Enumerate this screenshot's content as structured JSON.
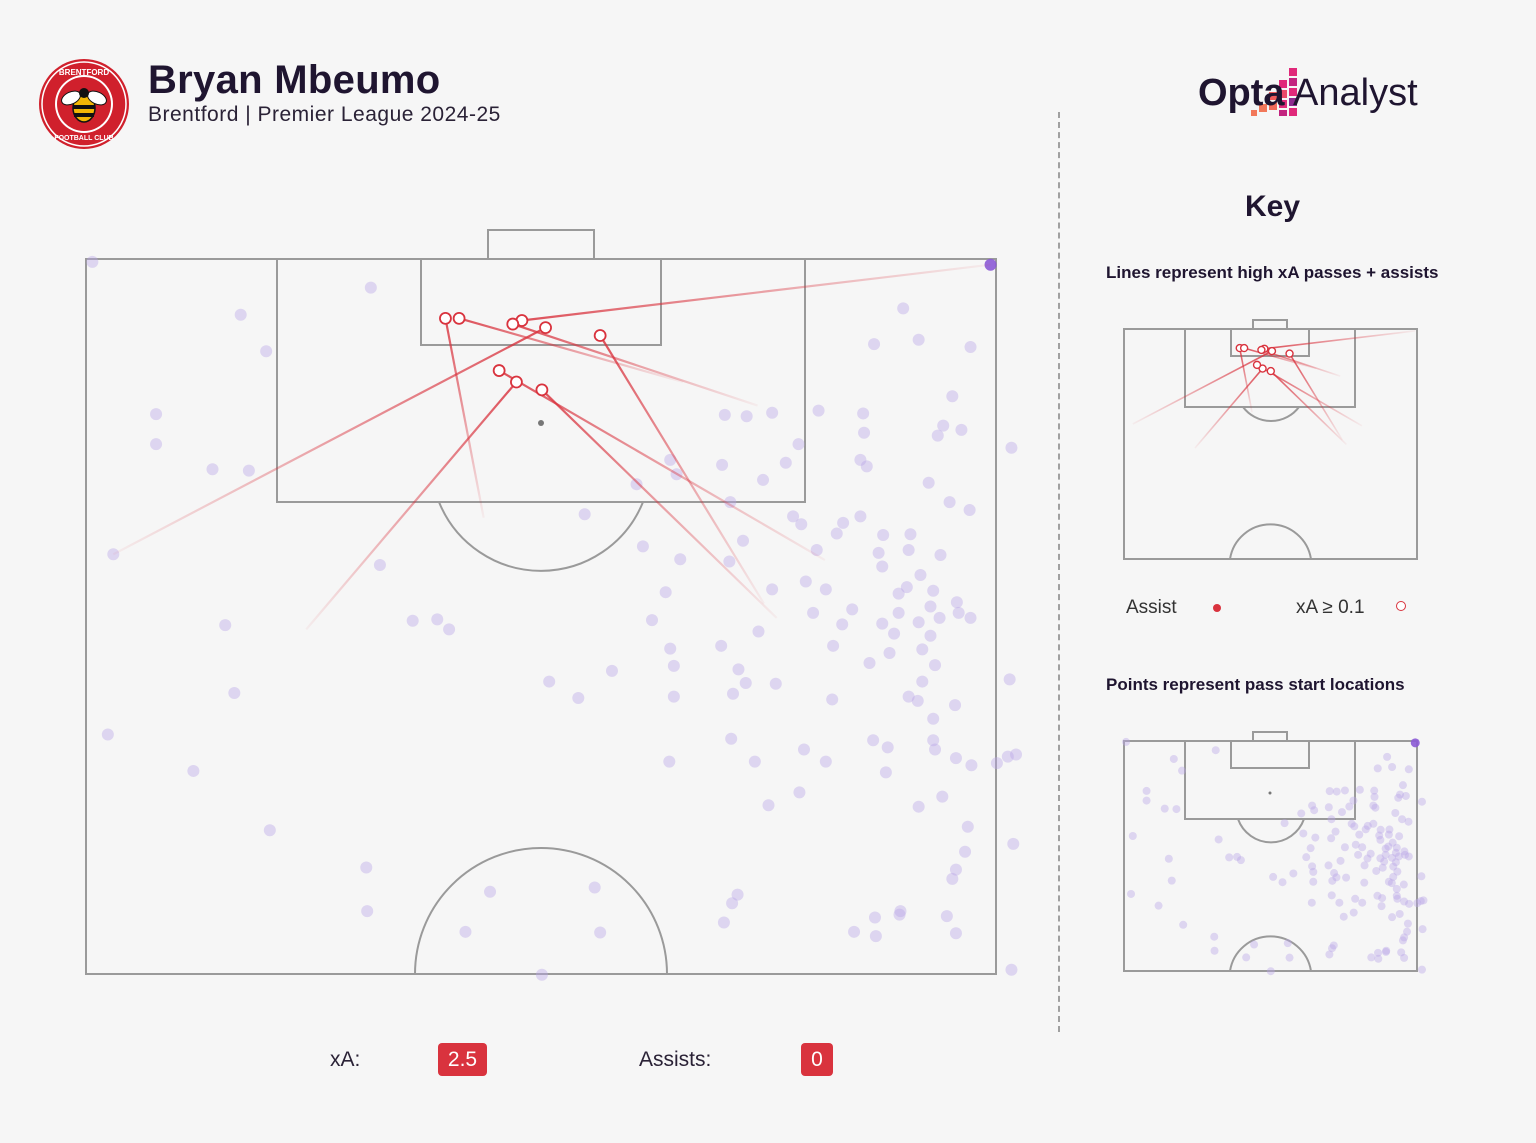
{
  "header": {
    "player_name": "Bryan Mbeumo",
    "subtitle": "Brentford | Premier League 2024-25",
    "club_badge_icon": "brentford-badge-icon",
    "brand": {
      "bold": "Opta",
      "light": " Analyst"
    }
  },
  "key": {
    "title": "Key",
    "lines_caption": "Lines represent high xA passes + assists",
    "points_caption": "Points represent pass start locations",
    "legend_assist": "Assist",
    "legend_xa": "xA ≥ 0.1"
  },
  "stats": {
    "xa_label": "xA:",
    "xa_value": "2.5",
    "assists_label": "Assists:",
    "assists_value": "0"
  },
  "colors": {
    "pass_point": "#b9a6e8",
    "key_pass": "#d9333e",
    "pitch_line": "#9a9a9a",
    "badge_red": "#d0202c"
  },
  "chart_data": {
    "type": "scatter",
    "title": "",
    "coordinate_system": "attacking-half pitch, x = width 0-100 (left to right), y = distance from goal line 0-100 (goal line to halfway)",
    "pass_start_points": [
      [
        0.7,
        0.4
      ],
      [
        99.4,
        0.8
      ],
      [
        31.3,
        4
      ],
      [
        17,
        7.8
      ],
      [
        89.8,
        6.9
      ],
      [
        19.8,
        12.9
      ],
      [
        86.6,
        11.9
      ],
      [
        91.5,
        11.3
      ],
      [
        97.2,
        12.3
      ],
      [
        95.2,
        19.2
      ],
      [
        7.7,
        21.7
      ],
      [
        70.2,
        21.8
      ],
      [
        72.6,
        22
      ],
      [
        75.4,
        21.5
      ],
      [
        80.5,
        21.2
      ],
      [
        85.4,
        21.6
      ],
      [
        94.2,
        23.3
      ],
      [
        96.2,
        23.9
      ],
      [
        7.7,
        25.9
      ],
      [
        78.3,
        25.9
      ],
      [
        85.5,
        24.3
      ],
      [
        93.6,
        24.7
      ],
      [
        101.7,
        26.4
      ],
      [
        64.2,
        28.1
      ],
      [
        69.9,
        28.8
      ],
      [
        76.9,
        28.5
      ],
      [
        85.1,
        28.1
      ],
      [
        13.9,
        29.4
      ],
      [
        17.9,
        29.6
      ],
      [
        85.8,
        29
      ],
      [
        92.6,
        31.3
      ],
      [
        60.5,
        31.5
      ],
      [
        64.9,
        30.1
      ],
      [
        74.4,
        30.9
      ],
      [
        70.8,
        34
      ],
      [
        54.8,
        35.7
      ],
      [
        77.7,
        36
      ],
      [
        85.1,
        36
      ],
      [
        94.9,
        34
      ],
      [
        97.1,
        35.1
      ],
      [
        78.6,
        37.1
      ],
      [
        83.2,
        36.9
      ],
      [
        82.5,
        38.4
      ],
      [
        72.2,
        39.4
      ],
      [
        87.6,
        38.6
      ],
      [
        90.6,
        38.5
      ],
      [
        80.3,
        40.7
      ],
      [
        3,
        41.3
      ],
      [
        61.2,
        40.2
      ],
      [
        70.7,
        42.3
      ],
      [
        65.3,
        42
      ],
      [
        32.3,
        42.8
      ],
      [
        87.1,
        41.1
      ],
      [
        90.4,
        40.7
      ],
      [
        87.5,
        43
      ],
      [
        93.9,
        41.4
      ],
      [
        91.7,
        44.2
      ],
      [
        79.1,
        45.1
      ],
      [
        81.3,
        46.2
      ],
      [
        90.2,
        45.9
      ],
      [
        63.7,
        46.6
      ],
      [
        75.4,
        46.2
      ],
      [
        89.3,
        46.8
      ],
      [
        93.1,
        46.4
      ],
      [
        95.7,
        48
      ],
      [
        92.8,
        48.6
      ],
      [
        84.2,
        49
      ],
      [
        95.9,
        49.5
      ],
      [
        38.6,
        50.4
      ],
      [
        35.9,
        50.6
      ],
      [
        79.9,
        49.5
      ],
      [
        89.3,
        49.5
      ],
      [
        15.3,
        51.2
      ],
      [
        39.9,
        51.8
      ],
      [
        62.2,
        50.5
      ],
      [
        73.9,
        52.1
      ],
      [
        83.1,
        51.1
      ],
      [
        87.5,
        51
      ],
      [
        91.5,
        50.8
      ],
      [
        93.8,
        50.2
      ],
      [
        97.2,
        50.2
      ],
      [
        88.8,
        52.4
      ],
      [
        92.8,
        52.7
      ],
      [
        64.2,
        54.5
      ],
      [
        69.8,
        54.1
      ],
      [
        82.1,
        54.1
      ],
      [
        88.3,
        55.1
      ],
      [
        91.9,
        54.6
      ],
      [
        86.1,
        56.5
      ],
      [
        101.5,
        58.8
      ],
      [
        50.9,
        59.1
      ],
      [
        57.8,
        57.6
      ],
      [
        64.6,
        56.9
      ],
      [
        71.7,
        57.4
      ],
      [
        93.3,
        56.8
      ],
      [
        91.9,
        59.1
      ],
      [
        54.1,
        61.4
      ],
      [
        64.6,
        61.2
      ],
      [
        16.3,
        60.7
      ],
      [
        72.5,
        59.3
      ],
      [
        71.1,
        60.8
      ],
      [
        75.8,
        59.4
      ],
      [
        82,
        61.6
      ],
      [
        90.4,
        61.2
      ],
      [
        91.4,
        61.8
      ],
      [
        95.5,
        62.4
      ],
      [
        93.1,
        64.3
      ],
      [
        70.9,
        67.1
      ],
      [
        86.5,
        67.3
      ],
      [
        93.1,
        67.3
      ],
      [
        2.4,
        66.5
      ],
      [
        78.9,
        68.6
      ],
      [
        88.1,
        68.3
      ],
      [
        93.3,
        68.6
      ],
      [
        102.2,
        69.3
      ],
      [
        97.3,
        70.8
      ],
      [
        100.1,
        70.5
      ],
      [
        101.3,
        69.6
      ],
      [
        95.6,
        69.8
      ],
      [
        11.8,
        71.6
      ],
      [
        64.1,
        70.3
      ],
      [
        73.5,
        70.3
      ],
      [
        81.3,
        70.3
      ],
      [
        87.9,
        71.8
      ],
      [
        78.4,
        74.6
      ],
      [
        94.1,
        75.2
      ],
      [
        75,
        76.4
      ],
      [
        91.5,
        76.6
      ],
      [
        20.2,
        79.9
      ],
      [
        96.9,
        79.4
      ],
      [
        101.9,
        81.8
      ],
      [
        96.6,
        82.9
      ],
      [
        30.8,
        85.1
      ],
      [
        95.6,
        85.4
      ],
      [
        95.2,
        86.7
      ],
      [
        44.4,
        88.5
      ],
      [
        55.9,
        87.9
      ],
      [
        71.6,
        88.9
      ],
      [
        71,
        90.1
      ],
      [
        30.9,
        91.2
      ],
      [
        89.5,
        91.2
      ],
      [
        89.4,
        91.7
      ],
      [
        86.7,
        92.1
      ],
      [
        94.6,
        91.9
      ],
      [
        70.1,
        92.8
      ],
      [
        41.7,
        94.1
      ],
      [
        56.5,
        94.2
      ],
      [
        84.4,
        94.1
      ],
      [
        86.8,
        94.7
      ],
      [
        95.6,
        94.3
      ],
      [
        50.1,
        100.1
      ],
      [
        101.7,
        99.4
      ]
    ],
    "start_point_highlighted": [
      99.4,
      0.8
    ],
    "key_passes": [
      {
        "type": "xA>=0.1",
        "start": [
          3,
          41.3
        ],
        "end": [
          50.5,
          9.6
        ]
      },
      {
        "type": "xA>=0.1",
        "start": [
          99.4,
          0.8
        ],
        "end": [
          47.9,
          8.6
        ]
      },
      {
        "type": "xA>=0.1",
        "start": [
          43.7,
          36.2
        ],
        "end": [
          39.5,
          8.3
        ]
      },
      {
        "type": "xA>=0.1",
        "start": [
          24.2,
          51.8
        ],
        "end": [
          47.3,
          17.2
        ]
      },
      {
        "type": "xA>=0.1",
        "start": [
          75.9,
          50.2
        ],
        "end": [
          50.1,
          18.3
        ]
      },
      {
        "type": "xA>=0.1",
        "start": [
          81.2,
          42.1
        ],
        "end": [
          45.4,
          15.6
        ]
      },
      {
        "type": "xA>=0.1",
        "start": [
          65.6,
          17.2
        ],
        "end": [
          41,
          8.3
        ]
      },
      {
        "type": "xA>=0.1",
        "start": [
          73.8,
          20.5
        ],
        "end": [
          46.9,
          9.1
        ]
      },
      {
        "type": "xA>=0.1",
        "start": [
          74.5,
          48.2
        ],
        "end": [
          56.5,
          10.7
        ]
      }
    ],
    "legend": [
      "Assist",
      "xA ≥ 0.1"
    ],
    "grid": false
  }
}
